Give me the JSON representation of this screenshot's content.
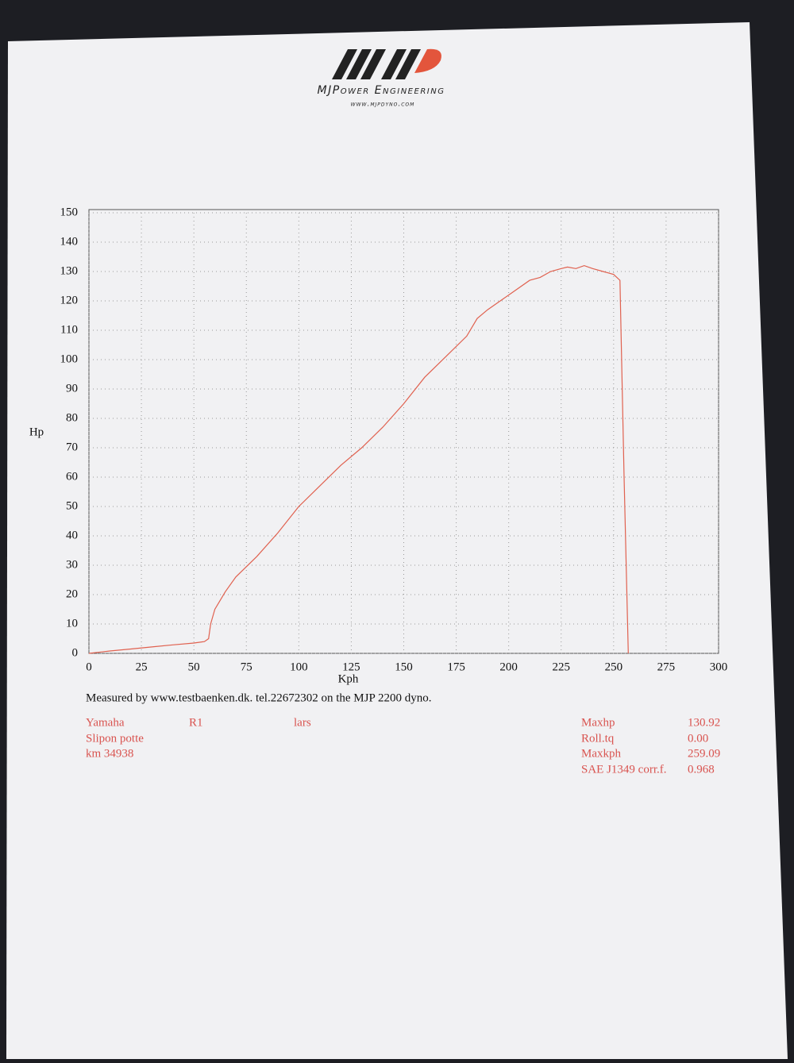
{
  "header": {
    "brand": "MJPower Engineering",
    "url": "www.mjpdyno.com"
  },
  "chart_data": {
    "type": "line",
    "x_label": "Kph",
    "y_label": "Hp",
    "color": "#e0614f",
    "grid": true,
    "x": [
      0,
      10,
      20,
      30,
      40,
      50,
      55,
      57,
      58,
      60,
      65,
      70,
      80,
      90,
      100,
      110,
      120,
      130,
      140,
      150,
      160,
      170,
      180,
      185,
      190,
      200,
      210,
      215,
      220,
      225,
      228,
      232,
      236,
      240,
      245,
      250,
      253,
      255,
      257
    ],
    "values": [
      0,
      0.8,
      1.5,
      2.2,
      2.9,
      3.5,
      4,
      5,
      10,
      15,
      21,
      26,
      33,
      41,
      50,
      57,
      64,
      70,
      77,
      85,
      94,
      101,
      108,
      114,
      117,
      122,
      127,
      128,
      130,
      131,
      131.5,
      131,
      132,
      131,
      130,
      129,
      127,
      60,
      0
    ],
    "xlim": [
      0,
      300
    ],
    "xticks": [
      0,
      25,
      50,
      75,
      100,
      125,
      150,
      175,
      200,
      225,
      250,
      275,
      300
    ],
    "ylim": [
      0,
      150
    ],
    "yticks": [
      0,
      10,
      20,
      30,
      40,
      50,
      60,
      70,
      80,
      90,
      100,
      110,
      120,
      130,
      140,
      150
    ]
  },
  "footer": {
    "note": "Measured by www.testbaenken.dk. tel.22672302 on the MJP 2200 dyno."
  },
  "info": {
    "left": [
      "Yamaha",
      "Slipon potte",
      "km 34938"
    ],
    "model": "R1",
    "owner": "lars",
    "stats": [
      {
        "label": "Maxhp",
        "value": "130.92"
      },
      {
        "label": "Roll.tq",
        "value": "0.00"
      },
      {
        "label": "Maxkph",
        "value": "259.09"
      },
      {
        "label": "SAE J1349 corr.f.",
        "value": "0.968"
      }
    ]
  }
}
